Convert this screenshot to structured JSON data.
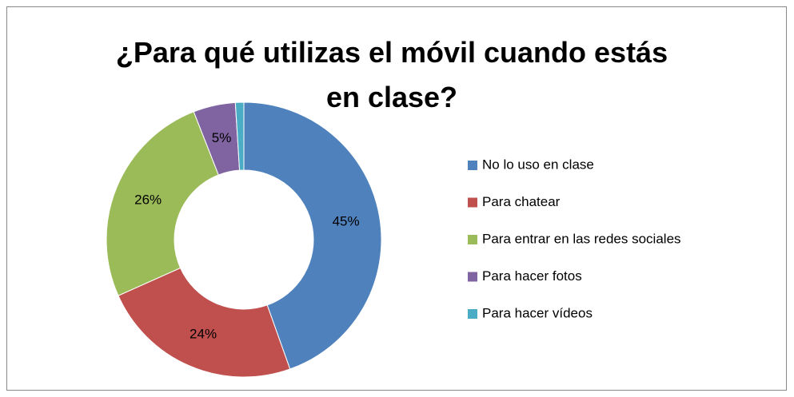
{
  "chart_data": {
    "type": "donut",
    "title": "¿Para qué utilizas el móvil cuando estás en clase?",
    "categories": [
      "No lo uso en clase",
      "Para chatear",
      "Para entrar en las redes sociales",
      "Para hacer fotos",
      "Para hacer vídeos"
    ],
    "values": [
      45,
      24,
      26,
      5,
      1
    ],
    "value_labels": [
      "45%",
      "24%",
      "26%",
      "5%",
      null
    ],
    "colors": [
      "#4f81bd",
      "#c0504d",
      "#9bbb59",
      "#8064a2",
      "#4bacc6"
    ],
    "legend": "right"
  }
}
